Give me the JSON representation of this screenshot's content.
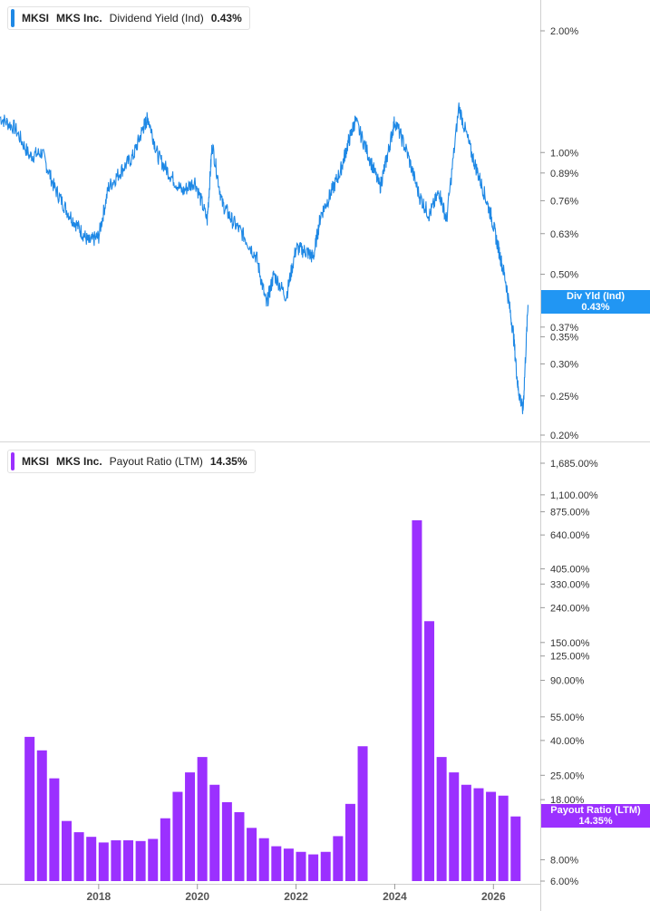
{
  "top_legend": {
    "ticker": "MKSI",
    "company": "MKS Inc.",
    "metric": "Dividend Yield (Ind)",
    "value": "0.43%",
    "color": "#1e88e5"
  },
  "bottom_legend": {
    "ticker": "MKSI",
    "company": "MKS Inc.",
    "metric": "Payout Ratio (LTM)",
    "value": "14.35%",
    "color": "#9b30ff"
  },
  "top_badge": {
    "label": "Div Yld (Ind)",
    "value": "0.43%",
    "color": "#2196f3"
  },
  "bottom_badge": {
    "label": "Payout Ratio (LTM)",
    "value": "14.35%",
    "color": "#9b30ff"
  },
  "chart_data": [
    {
      "type": "line",
      "scale": "log",
      "ylabel": "",
      "ylim": [
        0.2,
        2.3
      ],
      "yticks": [
        {
          "value": 2.0,
          "label": "2.00%"
        },
        {
          "value": 1.0,
          "label": "1.00%"
        },
        {
          "value": 0.89,
          "label": "0.89%"
        },
        {
          "value": 0.76,
          "label": "0.76%"
        },
        {
          "value": 0.63,
          "label": "0.63%"
        },
        {
          "value": 0.5,
          "label": "0.50%"
        },
        {
          "value": 0.37,
          "label": "0.37%"
        },
        {
          "value": 0.35,
          "label": "0.35%"
        },
        {
          "value": 0.3,
          "label": "0.30%"
        },
        {
          "value": 0.25,
          "label": "0.25%"
        },
        {
          "value": 0.2,
          "label": "0.20%"
        }
      ],
      "series": [
        {
          "name": "Dividend Yield (Ind)",
          "color": "#1e88e5",
          "x": [
            2016.0,
            2016.3,
            2016.6,
            2016.85,
            2017.1,
            2017.35,
            2017.6,
            2017.8,
            2018.0,
            2018.2,
            2018.45,
            2018.7,
            2018.9,
            2019.0,
            2019.2,
            2019.45,
            2019.7,
            2019.95,
            2020.2,
            2020.3,
            2020.5,
            2020.7,
            2020.95,
            2021.2,
            2021.4,
            2021.55,
            2021.8,
            2022.0,
            2022.2,
            2022.35,
            2022.5,
            2022.7,
            2022.9,
            2023.05,
            2023.2,
            2023.45,
            2023.7,
            2023.85,
            2024.0,
            2024.25,
            2024.5,
            2024.7,
            2024.9,
            2025.05,
            2025.3,
            2025.55,
            2025.75,
            2025.95,
            2026.1,
            2026.25,
            2026.4,
            2026.5,
            2026.6,
            2026.7
          ],
          "y": [
            1.22,
            1.15,
            0.98,
            1.0,
            0.82,
            0.72,
            0.65,
            0.6,
            0.62,
            0.82,
            0.9,
            0.98,
            1.15,
            1.22,
            0.98,
            0.88,
            0.8,
            0.85,
            0.68,
            1.05,
            0.75,
            0.68,
            0.62,
            0.55,
            0.42,
            0.5,
            0.44,
            0.58,
            0.57,
            0.55,
            0.7,
            0.79,
            0.9,
            1.05,
            1.2,
            1.0,
            0.82,
            0.98,
            1.2,
            1.0,
            0.78,
            0.7,
            0.8,
            0.68,
            1.3,
            1.0,
            0.84,
            0.7,
            0.58,
            0.48,
            0.36,
            0.26,
            0.23,
            0.42
          ]
        }
      ]
    },
    {
      "type": "bar",
      "scale": "log",
      "ylabel": "",
      "ylim": [
        6,
        1900
      ],
      "yticks": [
        {
          "value": 1685,
          "label": "1,685.00%"
        },
        {
          "value": 1100,
          "label": "1,100.00%"
        },
        {
          "value": 875,
          "label": "875.00%"
        },
        {
          "value": 640,
          "label": "640.00%"
        },
        {
          "value": 405,
          "label": "405.00%"
        },
        {
          "value": 330,
          "label": "330.00%"
        },
        {
          "value": 240,
          "label": "240.00%"
        },
        {
          "value": 150,
          "label": "150.00%"
        },
        {
          "value": 125,
          "label": "125.00%"
        },
        {
          "value": 90,
          "label": "90.00%"
        },
        {
          "value": 55,
          "label": "55.00%"
        },
        {
          "value": 40,
          "label": "40.00%"
        },
        {
          "value": 25,
          "label": "25.00%"
        },
        {
          "value": 18,
          "label": "18.00%"
        },
        {
          "value": 8,
          "label": "8.00%"
        },
        {
          "value": 6,
          "label": "6.00%"
        }
      ],
      "series": [
        {
          "name": "Payout Ratio (LTM)",
          "color": "#9b30ff",
          "x": [
            2016.6,
            2016.85,
            2017.1,
            2017.35,
            2017.6,
            2017.85,
            2018.1,
            2018.35,
            2018.6,
            2018.85,
            2019.1,
            2019.35,
            2019.6,
            2019.85,
            2020.1,
            2020.35,
            2020.6,
            2020.85,
            2021.1,
            2021.35,
            2021.6,
            2021.85,
            2022.1,
            2022.35,
            2022.6,
            2022.85,
            2023.1,
            2023.35,
            2024.45,
            2024.7,
            2024.95,
            2025.2,
            2025.45,
            2025.7,
            2025.95,
            2026.2,
            2026.45
          ],
          "y": [
            42,
            35,
            24,
            13.5,
            11.6,
            10.9,
            10.1,
            10.4,
            10.4,
            10.3,
            10.6,
            14,
            20,
            26,
            32,
            22,
            17.4,
            15.2,
            12.3,
            10.7,
            9.6,
            9.3,
            8.9,
            8.6,
            8.9,
            11,
            17,
            37,
            780,
            200,
            32,
            26,
            22,
            21,
            20,
            19,
            14.35
          ]
        }
      ]
    }
  ],
  "x_axis": {
    "ticks": [
      {
        "value": 2018,
        "label": "2018"
      },
      {
        "value": 2020,
        "label": "2020"
      },
      {
        "value": 2022,
        "label": "2022"
      },
      {
        "value": 2024,
        "label": "2024"
      },
      {
        "value": 2026,
        "label": "2026"
      }
    ]
  }
}
